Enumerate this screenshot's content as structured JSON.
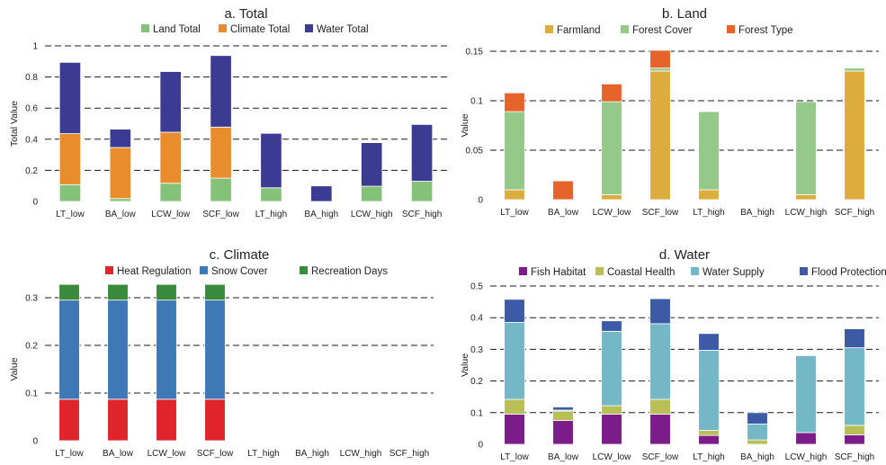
{
  "chart_data": [
    {
      "type": "bar",
      "stacked": true,
      "title": "a. Total",
      "ylabel": "Total Value",
      "xlabel": "",
      "categories": [
        "LT_low",
        "BA_low",
        "LCW_low",
        "SCF_low",
        "LT_high",
        "BA_high",
        "LCW_high",
        "SCF_high"
      ],
      "ylim": [
        0,
        1
      ],
      "yticks": [
        "0",
        "0.2",
        "0.4",
        "0.6",
        "0.8",
        "1"
      ],
      "grid": "horizontal dashed",
      "legend_position": "top",
      "series": [
        {
          "name": "Land Total",
          "color": "#84c27a",
          "values": [
            0.108,
            0.019,
            0.117,
            0.15,
            0.088,
            0.0,
            0.098,
            0.13
          ]
        },
        {
          "name": "Climate Total",
          "color": "#e98c2e",
          "values": [
            0.328,
            0.328,
            0.328,
            0.328,
            0.0,
            0.0,
            0.0,
            0.0
          ]
        },
        {
          "name": "Water Total",
          "color": "#3c3b94",
          "values": [
            0.458,
            0.118,
            0.39,
            0.46,
            0.35,
            0.1,
            0.28,
            0.365
          ]
        }
      ]
    },
    {
      "type": "bar",
      "stacked": true,
      "title": "b. Land",
      "ylabel": "Value",
      "xlabel": "",
      "categories": [
        "LT_low",
        "BA_low",
        "LCW_low",
        "SCF_low",
        "LT_high",
        "BA_high",
        "LCW_high",
        "SCF_high"
      ],
      "ylim": [
        0,
        0.15
      ],
      "yticks": [
        "0",
        "0.05",
        "0.1",
        "0.15"
      ],
      "grid": "horizontal dashed",
      "legend_position": "top",
      "series": [
        {
          "name": "Farmland",
          "color": "#dcac3c",
          "values": [
            0.01,
            0.0,
            0.005,
            0.13,
            0.01,
            0.0,
            0.005,
            0.13
          ]
        },
        {
          "name": "Forest Cover",
          "color": "#94c98a",
          "values": [
            0.079,
            0.0,
            0.094,
            0.003,
            0.079,
            0.0,
            0.094,
            0.003
          ]
        },
        {
          "name": "Forest Type",
          "color": "#e6642c",
          "values": [
            0.019,
            0.019,
            0.018,
            0.018,
            0.0,
            0.0,
            0.0,
            0.0
          ]
        }
      ]
    },
    {
      "type": "bar",
      "stacked": true,
      "title": "c. Climate",
      "ylabel": "Value",
      "xlabel": "",
      "categories": [
        "LT_low",
        "BA_low",
        "LCW_low",
        "SCF_low",
        "LT_high",
        "BA_high",
        "LCW_high",
        "SCF_high"
      ],
      "ylim": [
        0,
        0.3
      ],
      "yticks": [
        "0",
        "0.1",
        "0.2",
        "0.3"
      ],
      "grid": "horizontal dashed",
      "legend_position": "top",
      "series": [
        {
          "name": "Heat Regulation",
          "color": "#e0242b",
          "values": [
            0.087,
            0.087,
            0.087,
            0.087,
            0,
            0,
            0,
            0
          ]
        },
        {
          "name": "Snow Cover",
          "color": "#3e78b5",
          "values": [
            0.208,
            0.208,
            0.208,
            0.208,
            0,
            0,
            0,
            0
          ]
        },
        {
          "name": "Recreation Days",
          "color": "#3a8a3e",
          "values": [
            0.033,
            0.033,
            0.033,
            0.033,
            0,
            0,
            0,
            0
          ]
        }
      ]
    },
    {
      "type": "bar",
      "stacked": true,
      "title": "d. Water",
      "ylabel": "Value",
      "xlabel": "",
      "categories": [
        "LT_low",
        "BA_low",
        "LCW_low",
        "SCF_low",
        "LT_high",
        "BA_high",
        "LCW_high",
        "SCF_high"
      ],
      "ylim": [
        0,
        0.5
      ],
      "yticks": [
        "0",
        "0.1",
        "0.2",
        "0.3",
        "0.4",
        "0.5"
      ],
      "grid": "horizontal dashed",
      "legend_position": "top",
      "series": [
        {
          "name": "Fish Habitat",
          "color": "#7b1c8a",
          "values": [
            0.095,
            0.075,
            0.095,
            0.095,
            0.028,
            0.0,
            0.037,
            0.03
          ]
        },
        {
          "name": "Coastal Health",
          "color": "#b8bf56",
          "values": [
            0.047,
            0.03,
            0.027,
            0.047,
            0.016,
            0.014,
            0.0,
            0.03
          ]
        },
        {
          "name": "Water Supply",
          "color": "#74b7c6",
          "values": [
            0.243,
            0.003,
            0.235,
            0.239,
            0.253,
            0.05,
            0.243,
            0.245
          ]
        },
        {
          "name": "Flood Protection",
          "color": "#3c5aa6",
          "values": [
            0.073,
            0.01,
            0.033,
            0.079,
            0.053,
            0.036,
            0.0,
            0.06
          ]
        }
      ]
    }
  ]
}
